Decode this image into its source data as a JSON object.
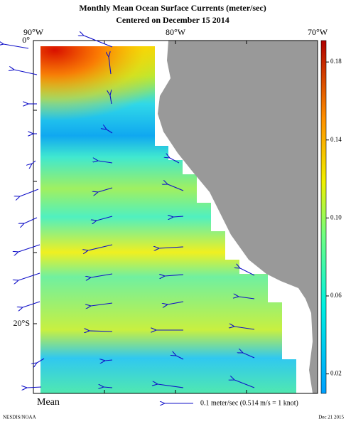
{
  "header": {
    "title": "Monthly Mean Ocean Surface Currents (meter/sec)",
    "subtitle": "Centered on December 15 2014"
  },
  "map": {
    "x_labels": [
      "90°W",
      "80°W",
      "70°W"
    ],
    "y_labels": [
      "0°",
      "20°S"
    ]
  },
  "colorbar": {
    "range": [
      0.01,
      0.191
    ],
    "ticks": [
      0.02,
      0.06,
      {
        "value": 0.1,
        "label": "0.10"
      },
      0.14,
      0.18
    ]
  },
  "legend": {
    "label": "Mean",
    "reference_arrow": "0.1 meter/sec  (0.514 m/s = 1 knot)"
  },
  "footer": {
    "source": "NESDIS/NOAA",
    "date": "Dec 21 2015"
  }
}
